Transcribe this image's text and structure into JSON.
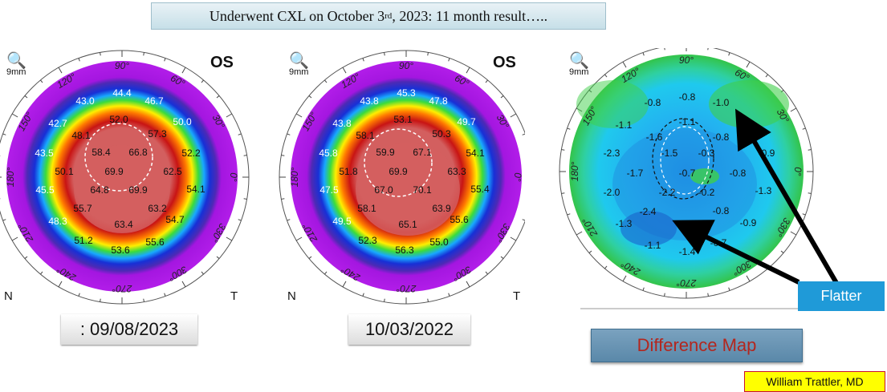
{
  "title": {
    "text_a": "Underwent CXL on October 3",
    "sup": "rd",
    "text_b": ", 2023:  11 month result….."
  },
  "maps": {
    "eye": "OS",
    "zoom": "9mm",
    "nasal": "N",
    "temporal": "T",
    "degree_labels": [
      "90°",
      "120°",
      "150°",
      "180°",
      "210°",
      "240°",
      "270°",
      "300°",
      "330°",
      "0°",
      "30°",
      "60°"
    ]
  },
  "map1": {
    "values": [
      "44.4",
      "43.0",
      "46.7",
      "42.7",
      "52.0",
      "50.0",
      "48.1",
      "57.3",
      "43.5",
      "58.4",
      "66.8",
      "52.2",
      "50.1",
      "69.9",
      "62.5",
      "45.5",
      "64.8",
      "69.9",
      "54.1",
      "55.7",
      "63.2",
      "48.3",
      "63.4",
      "54.7",
      "51.2",
      "55.6",
      "53.6"
    ]
  },
  "map2": {
    "values": [
      "45.3",
      "43.8",
      "47.8",
      "43.8",
      "53.1",
      "49.7",
      "58.1",
      "50.3",
      "45.8",
      "59.9",
      "67.1",
      "54.1",
      "51.8",
      "69.9",
      "63.3",
      "47.5",
      "67.0",
      "70.1",
      "55.4",
      "58.1",
      "63.9",
      "49.5",
      "65.1",
      "55.6",
      "52.3",
      "55.0",
      "56.3"
    ]
  },
  "map3": {
    "values": [
      "-0.8",
      "-0.8",
      "-1.0",
      "-1.1",
      "-1.1",
      "-1.6",
      "-0.8",
      "-2.3",
      "-1.5",
      "-0.3",
      "-0.9",
      "-1.7",
      "-0.7",
      "-0.8",
      "-2.0",
      "-2.2",
      "-0.2",
      "-1.3",
      "-2.4",
      "-0.8",
      "-1.3",
      "-0.9",
      "-1.1",
      "-1.4",
      "-0.7"
    ]
  },
  "dates": {
    "left": ": 09/08/2023",
    "right": "10/03/2022"
  },
  "difference_button": "Difference Map",
  "flatter_label": "Flatter",
  "credit": "William Trattler, MD",
  "colors": {
    "banner": "#c6dfe8",
    "difference_button": "#5a88a9",
    "difference_text": "#b3261e",
    "flatter_box": "#1f9ad8",
    "credit_background": "#ffff00",
    "credit_border": "#c8102e"
  }
}
